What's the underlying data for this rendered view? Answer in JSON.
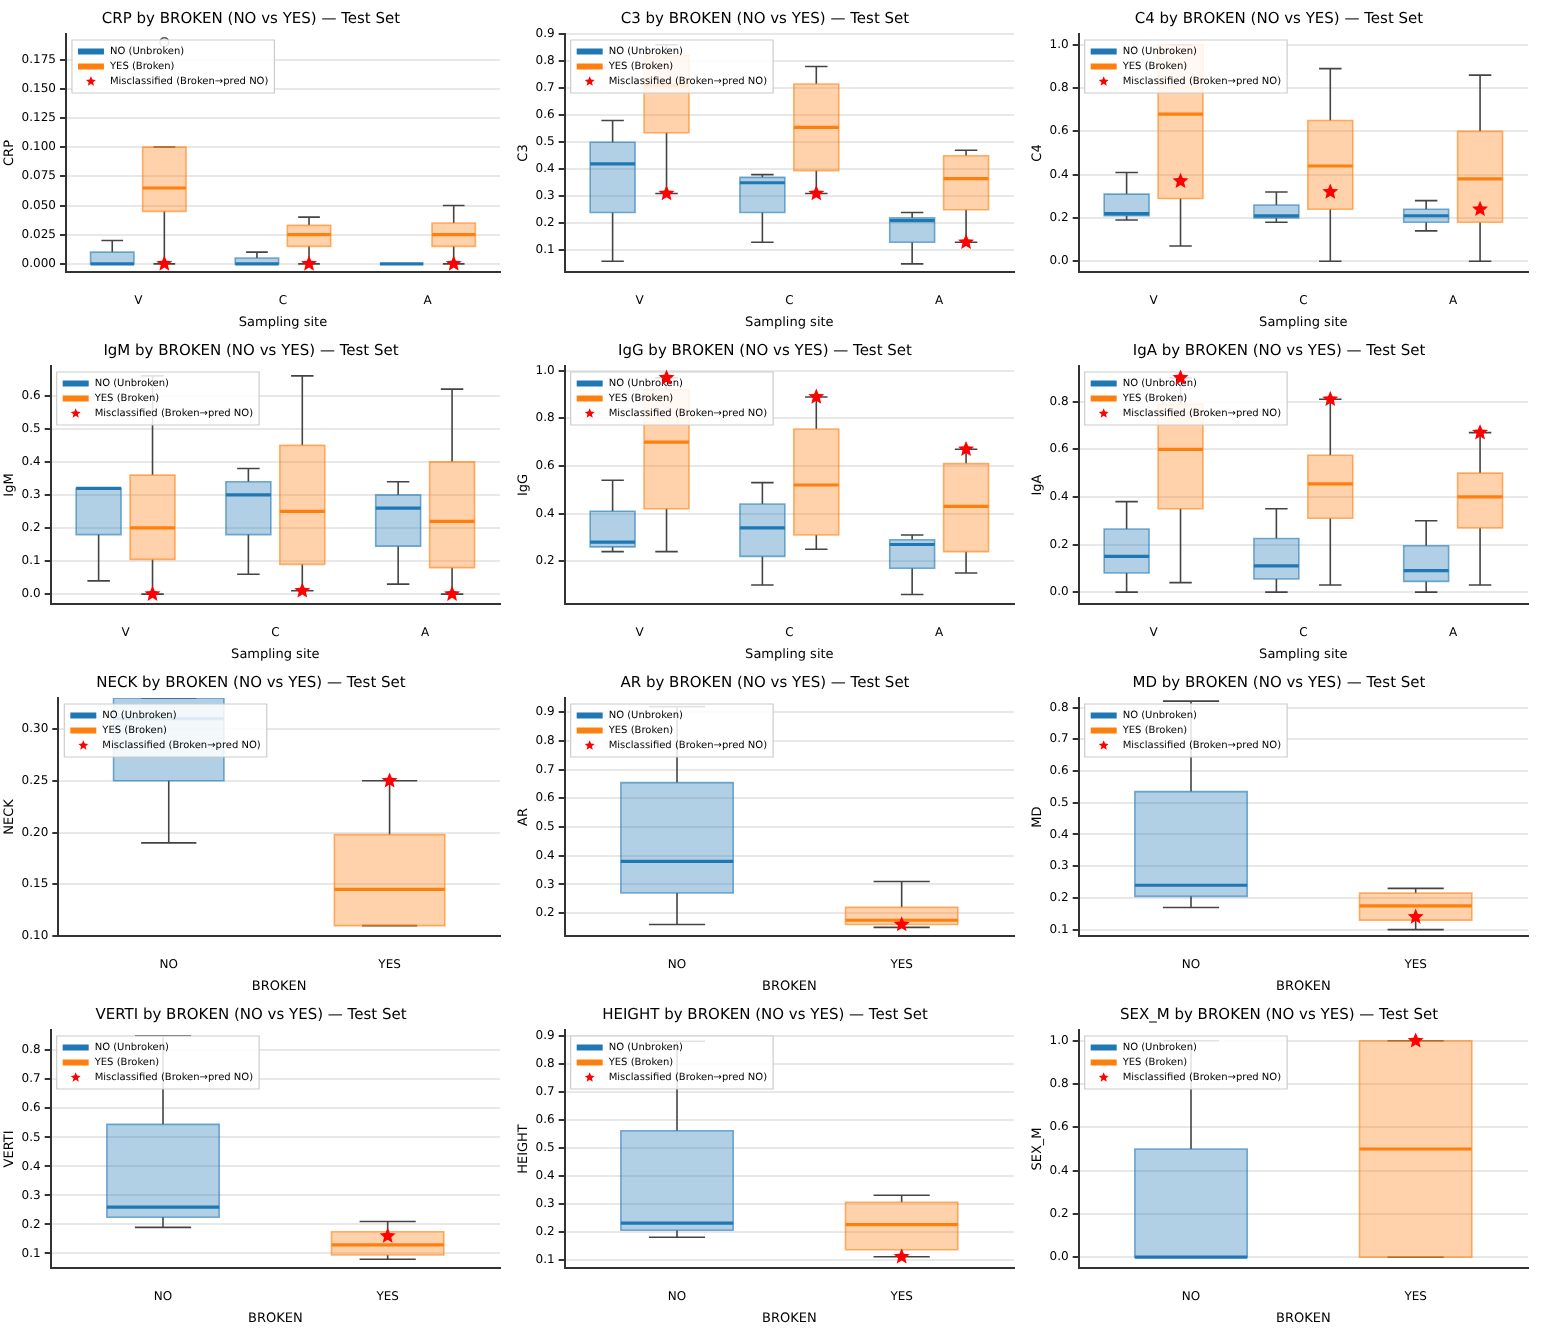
{
  "chart_data": [
    {
      "type": "box",
      "title": "CRP by BROKEN (NO vs YES) — Test Set",
      "xlabel": "Sampling site",
      "ylabel": "CRP",
      "categories": [
        "V",
        "C",
        "A"
      ],
      "ylim": [
        -0.007,
        0.197
      ],
      "yticks": [
        {
          "value": 0,
          "label": "0.000"
        },
        {
          "value": 0.025,
          "label": "0.025"
        },
        {
          "value": 0.05,
          "label": "0.050"
        },
        {
          "value": 0.075,
          "label": "0.075"
        },
        {
          "value": 0.1,
          "label": "0.100"
        },
        {
          "value": 0.125,
          "label": "0.125"
        },
        {
          "value": 0.15,
          "label": "0.150"
        },
        {
          "value": 0.175,
          "label": "0.175"
        }
      ],
      "grid": "y",
      "legend": "top left",
      "series": [
        {
          "name": "NO (Unbroken)",
          "color": "#1f77b4",
          "boxes": [
            {
              "low": 0,
              "q1": 0,
              "median": 0,
              "q3": 0.01,
              "high": 0.02
            },
            {
              "low": 0,
              "q1": 0,
              "median": 0,
              "q3": 0.005,
              "high": 0.01
            },
            {
              "low": 0,
              "q1": 0,
              "median": 0,
              "q3": 0,
              "high": 0
            }
          ]
        },
        {
          "name": "YES (Broken)",
          "color": "#ff7f0e",
          "boxes": [
            {
              "low": 0,
              "q1": 0.045,
              "median": 0.065,
              "q3": 0.1,
              "high": 0.1,
              "outliers": [
                0.19
              ]
            },
            {
              "low": 0,
              "q1": 0.015,
              "median": 0.025,
              "q3": 0.033,
              "high": 0.04
            },
            {
              "low": 0,
              "q1": 0.015,
              "median": 0.025,
              "q3": 0.035,
              "high": 0.05
            }
          ]
        },
        {
          "name": "Misclassified (Broken→pred NO)",
          "type": "scatter",
          "marker": "star",
          "color": "#ff0000",
          "x": [
            "V",
            "C",
            "A"
          ],
          "values": [
            0,
            0,
            0
          ]
        }
      ]
    },
    {
      "type": "box",
      "title": "C3 by BROKEN (NO vs YES) — Test Set",
      "xlabel": "Sampling site",
      "ylabel": "C3",
      "categories": [
        "V",
        "C",
        "A"
      ],
      "ylim": [
        0.02,
        0.9
      ],
      "yticks": [
        0.1,
        0.2,
        0.3,
        0.4,
        0.5,
        0.6,
        0.7,
        0.8,
        0.9
      ],
      "grid": "y",
      "legend": "top left",
      "series": [
        {
          "name": "NO (Unbroken)",
          "color": "#1f77b4",
          "boxes": [
            {
              "low": 0.06,
              "q1": 0.24,
              "median": 0.42,
              "q3": 0.5,
              "high": 0.58
            },
            {
              "low": 0.13,
              "q1": 0.24,
              "median": 0.35,
              "q3": 0.37,
              "high": 0.38
            },
            {
              "low": 0.05,
              "q1": 0.13,
              "median": 0.21,
              "q3": 0.22,
              "high": 0.24
            }
          ]
        },
        {
          "name": "YES (Broken)",
          "color": "#ff7f0e",
          "boxes": [
            {
              "low": 0.31,
              "q1": 0.535,
              "median": 0.71,
              "q3": 0.82,
              "high": 0.86
            },
            {
              "low": 0.31,
              "q1": 0.395,
              "median": 0.555,
              "q3": 0.715,
              "high": 0.78
            },
            {
              "low": 0.13,
              "q1": 0.25,
              "median": 0.365,
              "q3": 0.45,
              "high": 0.47
            }
          ]
        },
        {
          "name": "Misclassified (Broken→pred NO)",
          "type": "scatter",
          "marker": "star",
          "color": "#ff0000",
          "x": [
            "V",
            "C",
            "A"
          ],
          "values": [
            0.31,
            0.31,
            0.13
          ]
        }
      ]
    },
    {
      "type": "box",
      "title": "C4 by BROKEN (NO vs YES) — Test Set",
      "xlabel": "Sampling site",
      "ylabel": "C4",
      "categories": [
        "V",
        "C",
        "A"
      ],
      "ylim": [
        -0.05,
        1.05
      ],
      "yticks": [
        {
          "value": 0,
          "label": "0.0"
        },
        0.2,
        0.4,
        0.6,
        0.8,
        {
          "value": 1,
          "label": "1.0"
        }
      ],
      "grid": "y",
      "legend": "top left",
      "series": [
        {
          "name": "NO (Unbroken)",
          "color": "#1f77b4",
          "boxes": [
            {
              "low": 0.19,
              "q1": 0.21,
              "median": 0.22,
              "q3": 0.31,
              "high": 0.41
            },
            {
              "low": 0.18,
              "q1": 0.2,
              "median": 0.21,
              "q3": 0.26,
              "high": 0.32
            },
            {
              "low": 0.14,
              "q1": 0.18,
              "median": 0.21,
              "q3": 0.24,
              "high": 0.28
            }
          ]
        },
        {
          "name": "YES (Broken)",
          "color": "#ff7f0e",
          "boxes": [
            {
              "low": 0.07,
              "q1": 0.29,
              "median": 0.68,
              "q3": 1.0,
              "high": 1.0
            },
            {
              "low": 0,
              "q1": 0.24,
              "median": 0.44,
              "q3": 0.65,
              "high": 0.89
            },
            {
              "low": 0,
              "q1": 0.18,
              "median": 0.38,
              "q3": 0.6,
              "high": 0.86
            }
          ]
        },
        {
          "name": "Misclassified (Broken→pred NO)",
          "type": "scatter",
          "marker": "star",
          "color": "#ff0000",
          "x": [
            "V",
            "C",
            "A"
          ],
          "values": [
            0.37,
            0.32,
            0.24
          ]
        }
      ]
    },
    {
      "type": "box",
      "title": "IgM by BROKEN (NO vs YES) — Test Set",
      "xlabel": "Sampling site",
      "ylabel": "IgM",
      "categories": [
        "V",
        "C",
        "A"
      ],
      "ylim": [
        -0.03,
        0.69
      ],
      "yticks": [
        {
          "value": 0,
          "label": "0.0"
        },
        0.1,
        0.2,
        0.3,
        0.4,
        0.5,
        0.6
      ],
      "grid": "y",
      "legend": "top left",
      "series": [
        {
          "name": "NO (Unbroken)",
          "color": "#1f77b4",
          "boxes": [
            {
              "low": 0.04,
              "q1": 0.18,
              "median": 0.32,
              "q3": 0.32,
              "high": 0.32
            },
            {
              "low": 0.06,
              "q1": 0.18,
              "median": 0.3,
              "q3": 0.34,
              "high": 0.38
            },
            {
              "low": 0.03,
              "q1": 0.145,
              "median": 0.26,
              "q3": 0.3,
              "high": 0.34
            }
          ]
        },
        {
          "name": "YES (Broken)",
          "color": "#ff7f0e",
          "boxes": [
            {
              "low": 0,
              "q1": 0.105,
              "median": 0.2,
              "q3": 0.36,
              "high": 0.66
            },
            {
              "low": 0.01,
              "q1": 0.09,
              "median": 0.25,
              "q3": 0.45,
              "high": 0.66
            },
            {
              "low": 0,
              "q1": 0.08,
              "median": 0.22,
              "q3": 0.4,
              "high": 0.62
            }
          ]
        },
        {
          "name": "Misclassified (Broken→pred NO)",
          "type": "scatter",
          "marker": "star",
          "color": "#ff0000",
          "x": [
            "V",
            "C",
            "A"
          ],
          "values": [
            0,
            0.01,
            0
          ]
        }
      ]
    },
    {
      "type": "box",
      "title": "IgG by BROKEN (NO vs YES) — Test Set",
      "xlabel": "Sampling site",
      "ylabel": "IgG",
      "categories": [
        "V",
        "C",
        "A"
      ],
      "ylim": [
        0.02,
        1.02
      ],
      "yticks": [
        0.2,
        0.4,
        0.6,
        0.8,
        {
          "value": 1,
          "label": "1.0"
        }
      ],
      "grid": "y",
      "legend": "top left",
      "series": [
        {
          "name": "NO (Unbroken)",
          "color": "#1f77b4",
          "boxes": [
            {
              "low": 0.24,
              "q1": 0.26,
              "median": 0.28,
              "q3": 0.41,
              "high": 0.54
            },
            {
              "low": 0.1,
              "q1": 0.22,
              "median": 0.34,
              "q3": 0.44,
              "high": 0.53
            },
            {
              "low": 0.06,
              "q1": 0.17,
              "median": 0.27,
              "q3": 0.29,
              "high": 0.31
            }
          ]
        },
        {
          "name": "YES (Broken)",
          "color": "#ff7f0e",
          "boxes": [
            {
              "low": 0.24,
              "q1": 0.42,
              "median": 0.7,
              "q3": 0.92,
              "high": 0.97
            },
            {
              "low": 0.25,
              "q1": 0.31,
              "median": 0.52,
              "q3": 0.755,
              "high": 0.89
            },
            {
              "low": 0.15,
              "q1": 0.24,
              "median": 0.43,
              "q3": 0.61,
              "high": 0.67
            }
          ]
        },
        {
          "name": "Misclassified (Broken→pred NO)",
          "type": "scatter",
          "marker": "star",
          "color": "#ff0000",
          "x": [
            "V",
            "C",
            "A"
          ],
          "values": [
            0.97,
            0.89,
            0.67
          ]
        }
      ]
    },
    {
      "type": "box",
      "title": "IgA by BROKEN (NO vs YES) — Test Set",
      "xlabel": "Sampling site",
      "ylabel": "IgA",
      "categories": [
        "V",
        "C",
        "A"
      ],
      "ylim": [
        -0.05,
        0.95
      ],
      "yticks": [
        {
          "value": 0,
          "label": "0.0"
        },
        0.2,
        0.4,
        0.6,
        0.8
      ],
      "grid": "y",
      "legend": "top left",
      "series": [
        {
          "name": "NO (Unbroken)",
          "color": "#1f77b4",
          "boxes": [
            {
              "low": 0,
              "q1": 0.08,
              "median": 0.15,
              "q3": 0.265,
              "high": 0.38
            },
            {
              "low": 0,
              "q1": 0.055,
              "median": 0.11,
              "q3": 0.225,
              "high": 0.35
            },
            {
              "low": 0,
              "q1": 0.045,
              "median": 0.09,
              "q3": 0.195,
              "high": 0.3
            }
          ]
        },
        {
          "name": "YES (Broken)",
          "color": "#ff7f0e",
          "boxes": [
            {
              "low": 0.04,
              "q1": 0.35,
              "median": 0.6,
              "q3": 0.79,
              "high": 0.9
            },
            {
              "low": 0.03,
              "q1": 0.31,
              "median": 0.455,
              "q3": 0.575,
              "high": 0.81
            },
            {
              "low": 0.03,
              "q1": 0.27,
              "median": 0.4,
              "q3": 0.5,
              "high": 0.67
            }
          ]
        },
        {
          "name": "Misclassified (Broken→pred NO)",
          "type": "scatter",
          "marker": "star",
          "color": "#ff0000",
          "x": [
            "V",
            "C",
            "A"
          ],
          "values": [
            0.9,
            0.81,
            0.67
          ]
        }
      ]
    },
    {
      "type": "box",
      "title": "NECK by BROKEN (NO vs YES) — Test Set",
      "xlabel": "BROKEN",
      "ylabel": "NECK",
      "categories": [
        "NO",
        "YES"
      ],
      "ylim": [
        0.1,
        0.33
      ],
      "yticks": [
        {
          "value": 0.1,
          "label": "0.10"
        },
        0.15,
        {
          "value": 0.2,
          "label": "0.20"
        },
        0.25,
        {
          "value": 0.3,
          "label": "0.30"
        }
      ],
      "grid": "y",
      "legend": "top left",
      "series": [
        {
          "name": "NO (Unbroken)",
          "color": "#1f77b4",
          "boxes": [
            {
              "low": 0.19,
              "q1": 0.25,
              "median": 0.31,
              "q3": 0.33,
              "high": 0.33
            },
            null
          ]
        },
        {
          "name": "YES (Broken)",
          "color": "#ff7f0e",
          "boxes": [
            null,
            {
              "low": 0.11,
              "q1": 0.11,
              "median": 0.145,
              "q3": 0.198,
              "high": 0.25
            }
          ]
        },
        {
          "name": "Misclassified (Broken→pred NO)",
          "type": "scatter",
          "marker": "star",
          "color": "#ff0000",
          "x": [
            "YES"
          ],
          "values": [
            0.25
          ]
        }
      ]
    },
    {
      "type": "box",
      "title": "AR by BROKEN (NO vs YES) — Test Set",
      "xlabel": "BROKEN",
      "ylabel": "AR",
      "categories": [
        "NO",
        "YES"
      ],
      "ylim": [
        0.12,
        0.95
      ],
      "yticks": [
        0.2,
        0.3,
        0.4,
        0.5,
        0.6,
        0.7,
        0.8,
        0.9
      ],
      "grid": "y",
      "legend": "top left",
      "series": [
        {
          "name": "NO (Unbroken)",
          "color": "#1f77b4",
          "boxes": [
            {
              "low": 0.16,
              "q1": 0.27,
              "median": 0.38,
              "q3": 0.655,
              "high": 0.92
            },
            null
          ]
        },
        {
          "name": "YES (Broken)",
          "color": "#ff7f0e",
          "boxes": [
            null,
            {
              "low": 0.15,
              "q1": 0.16,
              "median": 0.175,
              "q3": 0.22,
              "high": 0.31
            }
          ]
        },
        {
          "name": "Misclassified (Broken→pred NO)",
          "type": "scatter",
          "marker": "star",
          "color": "#ff0000",
          "x": [
            "YES"
          ],
          "values": [
            0.16
          ]
        }
      ]
    },
    {
      "type": "box",
      "title": "MD by BROKEN (NO vs YES) — Test Set",
      "xlabel": "BROKEN",
      "ylabel": "MD",
      "categories": [
        "NO",
        "YES"
      ],
      "ylim": [
        0.08,
        0.83
      ],
      "yticks": [
        0.1,
        0.2,
        0.3,
        0.4,
        0.5,
        0.6,
        0.7,
        0.8
      ],
      "grid": "y",
      "legend": "top left",
      "series": [
        {
          "name": "NO (Unbroken)",
          "color": "#1f77b4",
          "boxes": [
            {
              "low": 0.17,
              "q1": 0.205,
              "median": 0.24,
              "q3": 0.535,
              "high": 0.82
            },
            null
          ]
        },
        {
          "name": "YES (Broken)",
          "color": "#ff7f0e",
          "boxes": [
            null,
            {
              "low": 0.1,
              "q1": 0.13,
              "median": 0.175,
              "q3": 0.215,
              "high": 0.23
            }
          ]
        },
        {
          "name": "Misclassified (Broken→pred NO)",
          "type": "scatter",
          "marker": "star",
          "color": "#ff0000",
          "x": [
            "YES"
          ],
          "values": [
            0.14
          ]
        }
      ]
    },
    {
      "type": "box",
      "title": "VERTI by BROKEN (NO vs YES) — Test Set",
      "xlabel": "BROKEN",
      "ylabel": "VERTI",
      "categories": [
        "NO",
        "YES"
      ],
      "ylim": [
        0.05,
        0.87
      ],
      "yticks": [
        0.1,
        0.2,
        0.3,
        0.4,
        0.5,
        0.6,
        0.7,
        0.8
      ],
      "grid": "y",
      "legend": "top left",
      "series": [
        {
          "name": "NO (Unbroken)",
          "color": "#1f77b4",
          "boxes": [
            {
              "low": 0.19,
              "q1": 0.225,
              "median": 0.26,
              "q3": 0.545,
              "high": 0.85
            },
            null
          ]
        },
        {
          "name": "YES (Broken)",
          "color": "#ff7f0e",
          "boxes": [
            null,
            {
              "low": 0.08,
              "q1": 0.095,
              "median": 0.13,
              "q3": 0.175,
              "high": 0.21
            }
          ]
        },
        {
          "name": "Misclassified (Broken→pred NO)",
          "type": "scatter",
          "marker": "star",
          "color": "#ff0000",
          "x": [
            "YES"
          ],
          "values": [
            0.16
          ]
        }
      ]
    },
    {
      "type": "box",
      "title": "HEIGHT by BROKEN (NO vs YES) — Test Set",
      "xlabel": "BROKEN",
      "ylabel": "HEIGHT",
      "categories": [
        "NO",
        "YES"
      ],
      "ylim": [
        0.07,
        0.92
      ],
      "yticks": [
        0.1,
        0.2,
        0.3,
        0.4,
        0.5,
        0.6,
        0.7,
        0.8,
        0.9
      ],
      "grid": "y",
      "legend": "top left",
      "series": [
        {
          "name": "NO (Unbroken)",
          "color": "#1f77b4",
          "boxes": [
            {
              "low": 0.18,
              "q1": 0.205,
              "median": 0.23,
              "q3": 0.56,
              "high": 0.88
            },
            null
          ]
        },
        {
          "name": "YES (Broken)",
          "color": "#ff7f0e",
          "boxes": [
            null,
            {
              "low": 0.11,
              "q1": 0.135,
              "median": 0.225,
              "q3": 0.305,
              "high": 0.33
            }
          ]
        },
        {
          "name": "Misclassified (Broken→pred NO)",
          "type": "scatter",
          "marker": "star",
          "color": "#ff0000",
          "x": [
            "YES"
          ],
          "values": [
            0.11
          ]
        }
      ]
    },
    {
      "type": "box",
      "title": "SEX_M by BROKEN (NO vs YES) — Test Set",
      "xlabel": "BROKEN",
      "ylabel": "SEX_M",
      "categories": [
        "NO",
        "YES"
      ],
      "ylim": [
        -0.05,
        1.05
      ],
      "yticks": [
        {
          "value": 0,
          "label": "0.0"
        },
        0.2,
        0.4,
        0.6,
        0.8,
        {
          "value": 1,
          "label": "1.0"
        }
      ],
      "grid": "y",
      "legend": "top left",
      "series": [
        {
          "name": "NO (Unbroken)",
          "color": "#1f77b4",
          "boxes": [
            {
              "low": 0,
              "q1": 0,
              "median": 0,
              "q3": 0.5,
              "high": 1.0
            },
            null
          ]
        },
        {
          "name": "YES (Broken)",
          "color": "#ff7f0e",
          "boxes": [
            null,
            {
              "low": 0,
              "q1": 0,
              "median": 0.5,
              "q3": 1.0,
              "high": 1.0
            }
          ]
        },
        {
          "name": "Misclassified (Broken→pred NO)",
          "type": "scatter",
          "marker": "star",
          "color": "#ff0000",
          "x": [
            "YES"
          ],
          "values": [
            1.0
          ]
        }
      ]
    }
  ]
}
